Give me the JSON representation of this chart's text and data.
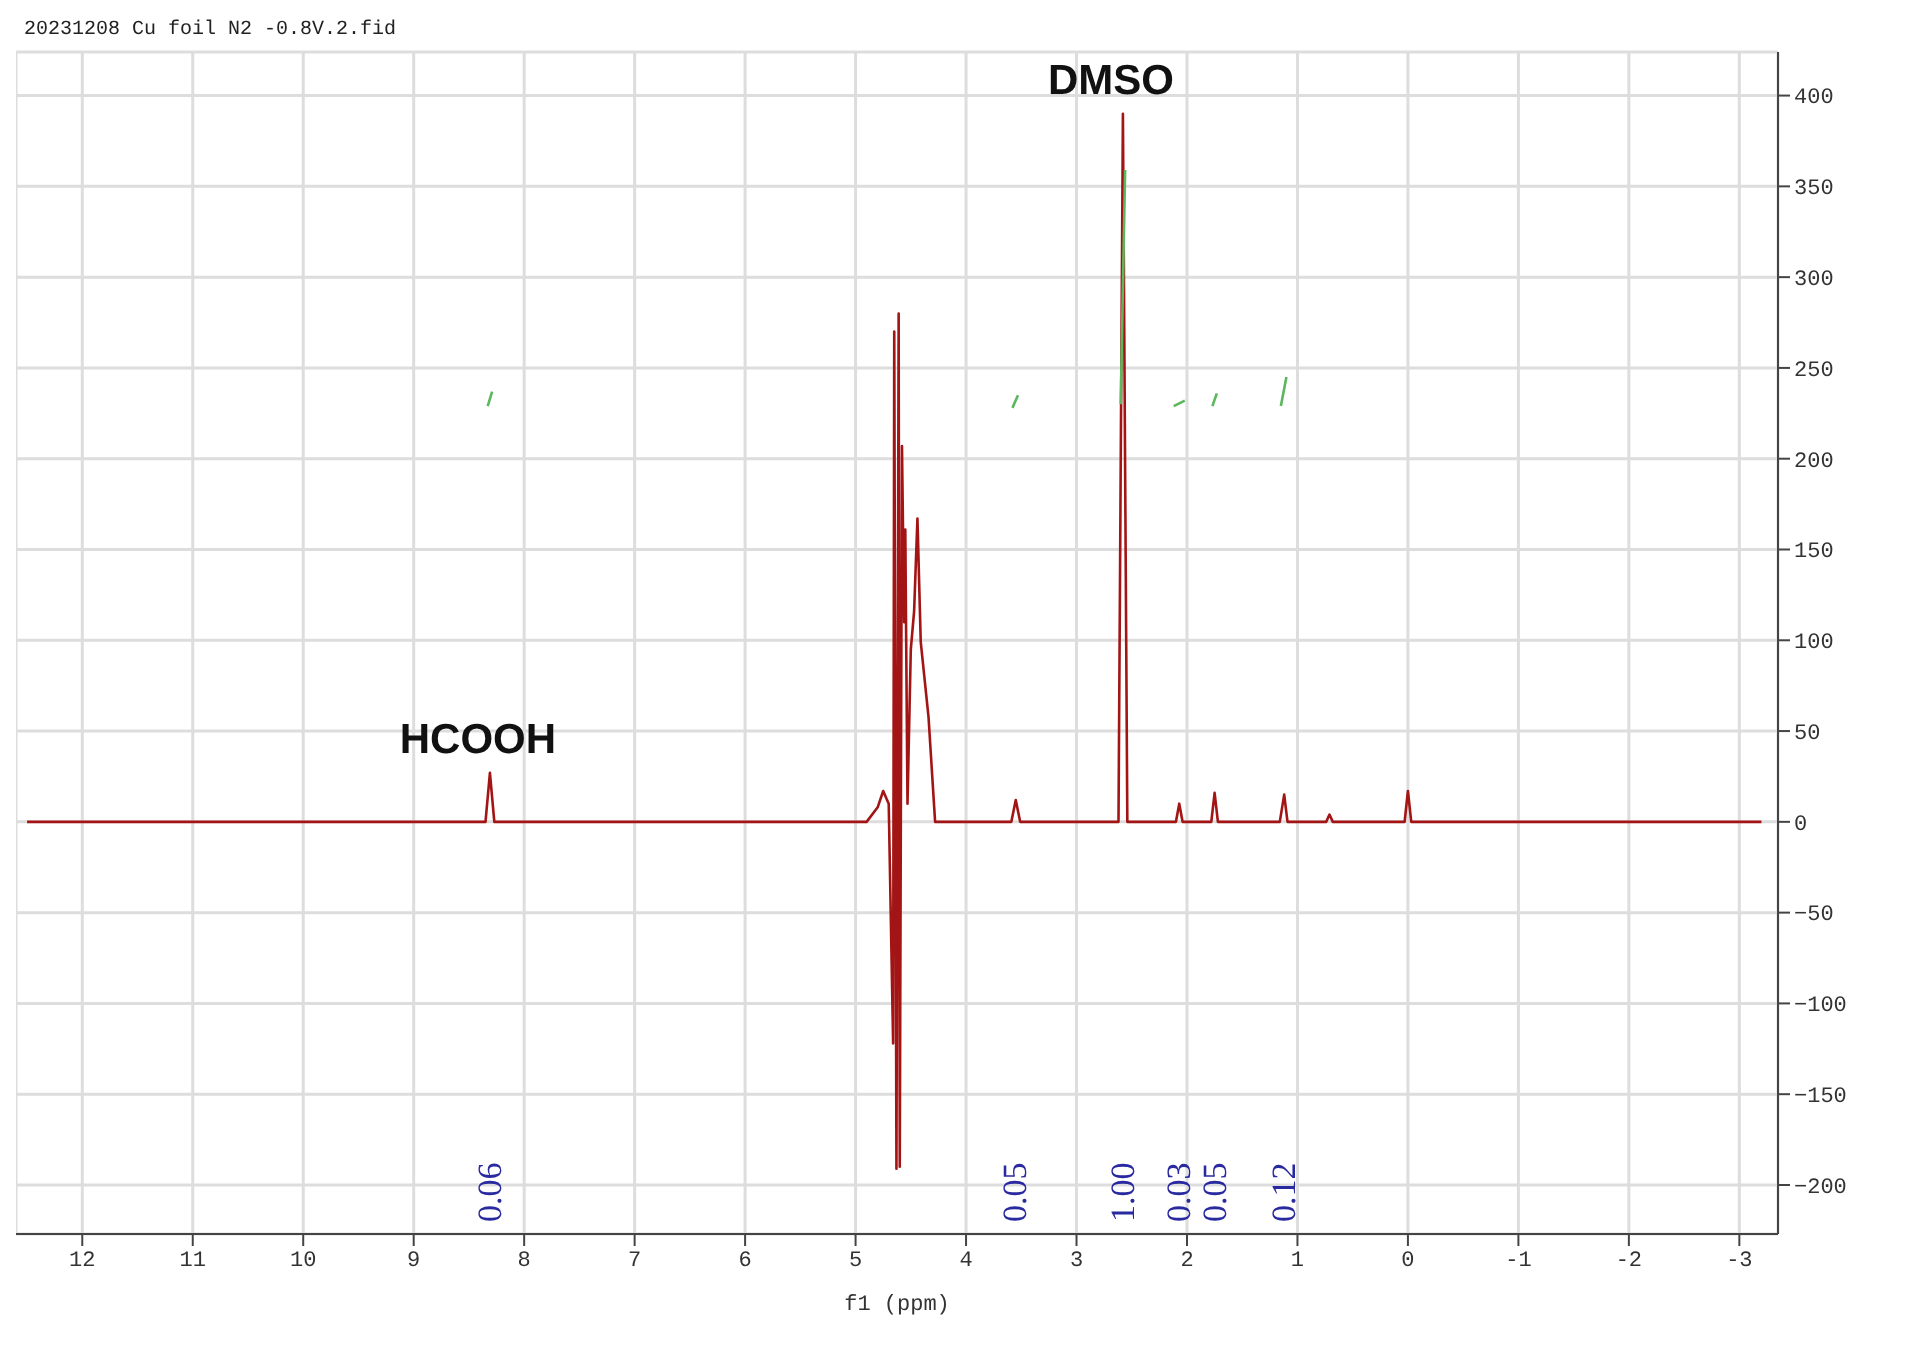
{
  "chart_data": {
    "type": "line",
    "title": "20231208 Cu foil N2 -0.8V.2.fid",
    "xlabel": "f1 (ppm)",
    "xlim": [
      12.6,
      -3.35
    ],
    "ylim": [
      -227,
      424
    ],
    "xticks": [
      12,
      11,
      10,
      9,
      8,
      7,
      6,
      5,
      4,
      3,
      2,
      1,
      0,
      -1,
      -2,
      -3
    ],
    "yticks": [
      -200,
      -150,
      -100,
      -50,
      0,
      50,
      100,
      150,
      200,
      250,
      300,
      350,
      400
    ],
    "grid": true,
    "marker": "none",
    "line_style": "solid",
    "series": [
      {
        "color": "#a31515",
        "x": [
          12.5,
          10,
          8.35,
          8.31,
          8.27,
          4.9,
          4.8,
          4.75,
          4.7,
          4.66,
          4.65,
          4.63,
          4.61,
          4.6,
          4.58,
          4.56,
          4.55,
          4.53,
          4.5,
          4.47,
          4.44,
          4.41,
          4.34,
          4.28,
          3.59,
          3.55,
          3.51,
          2.62,
          2.58,
          2.54,
          2.1,
          2.07,
          2.04,
          1.78,
          1.75,
          1.72,
          1.16,
          1.12,
          1.09,
          0.74,
          0.71,
          0.68,
          0.03,
          0,
          -0.03,
          -3.2
        ],
        "values": [
          0,
          0,
          0,
          27,
          0,
          0,
          8,
          17,
          10,
          -122,
          270,
          -191,
          280,
          -190,
          207,
          110,
          161,
          10,
          95,
          116,
          167,
          99,
          58,
          0,
          0,
          12,
          0,
          0,
          390,
          0,
          0,
          10,
          0,
          0,
          16,
          0,
          0,
          15,
          0,
          0,
          4,
          0,
          0,
          17,
          0,
          0
        ]
      },
      {
        "color": "#5cb85c",
        "x": [
          8.33,
          8.29,
          8.0,
          3.58,
          3.53,
          3.0,
          2.6,
          2.56,
          2.3,
          2.12,
          2.02,
          1.9,
          1.77,
          1.73,
          1.4,
          1.15,
          1.1
        ],
        "values": [
          229,
          237,
          null,
          228,
          235,
          null,
          230,
          359,
          null,
          229,
          232,
          null,
          229,
          236,
          null,
          229,
          245
        ]
      }
    ],
    "annotations": [
      {
        "text": "HCOOH",
        "x": 8.31,
        "y": 27
      },
      {
        "text": "DMSO",
        "x": 2.58,
        "y": 390
      },
      "0.06",
      "0.05",
      "1.00",
      "0.03",
      "0.05",
      "0.12"
    ]
  }
}
